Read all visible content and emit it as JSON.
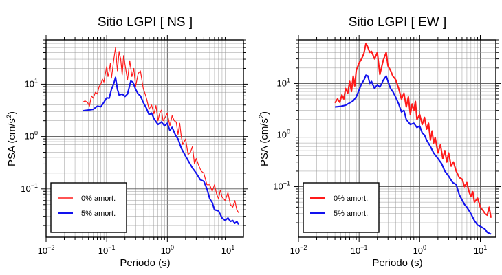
{
  "chart_data": [
    {
      "type": "line",
      "title": "Sitio LGPI [ NS ]",
      "xlabel": "Periodo (s)",
      "ylabel_main": "PSA (cm/s",
      "ylabel_sup": "2",
      "ylabel_close": ")",
      "x_scale": "log",
      "y_scale": "log",
      "xlim": [
        0.01,
        18
      ],
      "ylim": [
        0.012,
        70
      ],
      "grid": true,
      "legend_position": "bottom-left",
      "x_ticks": [
        {
          "base": "10",
          "exp": "−2",
          "value": 0.01
        },
        {
          "base": "10",
          "exp": "−1",
          "value": 0.1
        },
        {
          "base": "10",
          "exp": "0",
          "value": 1
        },
        {
          "base": "10",
          "exp": "1",
          "value": 10
        }
      ],
      "y_ticks": [
        {
          "base": "10",
          "exp": "−1",
          "value": 0.1
        },
        {
          "base": "10",
          "exp": "0",
          "value": 1
        },
        {
          "base": "10",
          "exp": "1",
          "value": 10
        }
      ],
      "series": [
        {
          "name": "0% amort.",
          "color": "#ff1a1a",
          "points": [
            [
              0.04,
              4.5
            ],
            [
              0.044,
              4.8
            ],
            [
              0.048,
              4.5
            ],
            [
              0.052,
              3.8
            ],
            [
              0.056,
              6.0
            ],
            [
              0.06,
              5.4
            ],
            [
              0.065,
              7.0
            ],
            [
              0.07,
              6.5
            ],
            [
              0.075,
              9.0
            ],
            [
              0.08,
              10.0
            ],
            [
              0.085,
              12.5
            ],
            [
              0.09,
              11.0
            ],
            [
              0.095,
              16.0
            ],
            [
              0.1,
              22.0
            ],
            [
              0.105,
              14.0
            ],
            [
              0.11,
              18.0
            ],
            [
              0.115,
              25.0
            ],
            [
              0.12,
              13.0
            ],
            [
              0.13,
              28.0
            ],
            [
              0.14,
              50.0
            ],
            [
              0.15,
              18.0
            ],
            [
              0.16,
              42.0
            ],
            [
              0.17,
              30.0
            ],
            [
              0.18,
              15.0
            ],
            [
              0.19,
              35.0
            ],
            [
              0.2,
              24.0
            ],
            [
              0.22,
              12.0
            ],
            [
              0.24,
              28.0
            ],
            [
              0.26,
              14.0
            ],
            [
              0.28,
              20.0
            ],
            [
              0.3,
              9.0
            ],
            [
              0.33,
              16.0
            ],
            [
              0.36,
              18.0
            ],
            [
              0.4,
              8.5
            ],
            [
              0.45,
              5.5
            ],
            [
              0.5,
              3.3
            ],
            [
              0.55,
              4.0
            ],
            [
              0.6,
              2.7
            ],
            [
              0.65,
              3.9
            ],
            [
              0.7,
              2.0
            ],
            [
              0.75,
              2.8
            ],
            [
              0.8,
              3.2
            ],
            [
              0.85,
              2.0
            ],
            [
              0.9,
              2.2
            ],
            [
              1.0,
              2.8
            ],
            [
              1.1,
              1.6
            ],
            [
              1.2,
              2.5
            ],
            [
              1.3,
              2.0
            ],
            [
              1.4,
              1.9
            ],
            [
              1.5,
              1.1
            ],
            [
              1.6,
              1.8
            ],
            [
              1.7,
              1.0
            ],
            [
              1.8,
              0.7
            ],
            [
              2.0,
              0.9
            ],
            [
              2.2,
              0.45
            ],
            [
              2.4,
              0.5
            ],
            [
              2.6,
              0.65
            ],
            [
              2.8,
              0.3
            ],
            [
              3.0,
              0.38
            ],
            [
              3.3,
              0.28
            ],
            [
              3.6,
              0.22
            ],
            [
              4.0,
              0.2
            ],
            [
              4.5,
              0.12
            ],
            [
              5.0,
              0.12
            ],
            [
              5.5,
              0.09
            ],
            [
              6.0,
              0.12
            ],
            [
              6.5,
              0.08
            ],
            [
              7.0,
              0.065
            ],
            [
              7.5,
              0.095
            ],
            [
              8.0,
              0.07
            ],
            [
              9.0,
              0.06
            ],
            [
              10.0,
              0.085
            ],
            [
              11.0,
              0.05
            ],
            [
              12.0,
              0.045
            ],
            [
              13.0,
              0.06
            ],
            [
              14.0,
              0.04
            ],
            [
              15.0,
              0.035
            ]
          ]
        },
        {
          "name": "5% amort.",
          "color": "#1212ee",
          "points": [
            [
              0.04,
              3.1
            ],
            [
              0.05,
              3.2
            ],
            [
              0.06,
              3.3
            ],
            [
              0.07,
              3.8
            ],
            [
              0.08,
              3.7
            ],
            [
              0.09,
              4.5
            ],
            [
              0.1,
              5.5
            ],
            [
              0.11,
              5.4
            ],
            [
              0.12,
              8.0
            ],
            [
              0.13,
              10.0
            ],
            [
              0.14,
              13.5
            ],
            [
              0.15,
              8.0
            ],
            [
              0.16,
              6.2
            ],
            [
              0.18,
              6.5
            ],
            [
              0.2,
              5.8
            ],
            [
              0.22,
              6.5
            ],
            [
              0.25,
              11.5
            ],
            [
              0.27,
              11.0
            ],
            [
              0.3,
              8.0
            ],
            [
              0.33,
              6.5
            ],
            [
              0.36,
              6.0
            ],
            [
              0.4,
              4.5
            ],
            [
              0.45,
              3.5
            ],
            [
              0.5,
              2.6
            ],
            [
              0.55,
              2.8
            ],
            [
              0.6,
              2.2
            ],
            [
              0.7,
              1.7
            ],
            [
              0.8,
              1.9
            ],
            [
              0.9,
              1.6
            ],
            [
              1.0,
              1.8
            ],
            [
              1.1,
              1.3
            ],
            [
              1.2,
              1.5
            ],
            [
              1.3,
              1.2
            ],
            [
              1.4,
              1.0
            ],
            [
              1.5,
              0.9
            ],
            [
              1.7,
              0.6
            ],
            [
              2.0,
              0.42
            ],
            [
              2.3,
              0.32
            ],
            [
              2.6,
              0.25
            ],
            [
              3.0,
              0.2
            ],
            [
              3.5,
              0.15
            ],
            [
              4.0,
              0.14
            ],
            [
              4.5,
              0.1
            ],
            [
              5.0,
              0.065
            ],
            [
              5.5,
              0.055
            ],
            [
              6.0,
              0.04
            ],
            [
              7.0,
              0.038
            ],
            [
              8.0,
              0.028
            ],
            [
              9.0,
              0.025
            ],
            [
              10.0,
              0.028
            ],
            [
              11.0,
              0.024
            ],
            [
              12.0,
              0.025
            ],
            [
              13.0,
              0.022
            ],
            [
              14.0,
              0.024
            ],
            [
              15.0,
              0.021
            ]
          ]
        }
      ]
    },
    {
      "type": "line",
      "title": "Sitio LGPI [ EW ]",
      "xlabel": "Periodo (s)",
      "ylabel_main": "PSA (cm/s",
      "ylabel_sup": "2",
      "ylabel_close": ")",
      "x_scale": "log",
      "y_scale": "log",
      "xlim": [
        0.01,
        18
      ],
      "ylim": [
        0.0105,
        70
      ],
      "grid": true,
      "legend_position": "bottom-left",
      "x_ticks": [
        {
          "base": "10",
          "exp": "−2",
          "value": 0.01
        },
        {
          "base": "10",
          "exp": "−1",
          "value": 0.1
        },
        {
          "base": "10",
          "exp": "0",
          "value": 1
        },
        {
          "base": "10",
          "exp": "1",
          "value": 10
        }
      ],
      "y_ticks": [
        {
          "base": "10",
          "exp": "−1",
          "value": 0.1
        },
        {
          "base": "10",
          "exp": "0",
          "value": 1
        },
        {
          "base": "10",
          "exp": "1",
          "value": 10
        }
      ],
      "series": [
        {
          "name": "0% amort.",
          "color": "#ff1a1a",
          "points": [
            [
              0.04,
              4.2
            ],
            [
              0.044,
              5.0
            ],
            [
              0.048,
              4.3
            ],
            [
              0.052,
              6.0
            ],
            [
              0.056,
              5.0
            ],
            [
              0.06,
              8.0
            ],
            [
              0.065,
              6.5
            ],
            [
              0.07,
              11.0
            ],
            [
              0.075,
              7.0
            ],
            [
              0.08,
              14.0
            ],
            [
              0.085,
              9.0
            ],
            [
              0.09,
              18.0
            ],
            [
              0.1,
              25.0
            ],
            [
              0.11,
              30.0
            ],
            [
              0.12,
              38.0
            ],
            [
              0.13,
              60.0
            ],
            [
              0.14,
              50.0
            ],
            [
              0.15,
              40.0
            ],
            [
              0.16,
              42.0
            ],
            [
              0.18,
              30.0
            ],
            [
              0.2,
              40.0
            ],
            [
              0.22,
              15.0
            ],
            [
              0.25,
              28.0
            ],
            [
              0.28,
              40.0
            ],
            [
              0.3,
              22.0
            ],
            [
              0.33,
              18.0
            ],
            [
              0.36,
              14.0
            ],
            [
              0.4,
              12.0
            ],
            [
              0.45,
              8.0
            ],
            [
              0.5,
              5.0
            ],
            [
              0.55,
              6.5
            ],
            [
              0.6,
              3.5
            ],
            [
              0.65,
              5.5
            ],
            [
              0.7,
              2.5
            ],
            [
              0.75,
              4.0
            ],
            [
              0.8,
              3.0
            ],
            [
              0.85,
              4.5
            ],
            [
              0.9,
              2.0
            ],
            [
              1.0,
              2.5
            ],
            [
              1.1,
              1.6
            ],
            [
              1.2,
              2.2
            ],
            [
              1.3,
              1.3
            ],
            [
              1.4,
              1.7
            ],
            [
              1.5,
              0.8
            ],
            [
              1.6,
              1.2
            ],
            [
              1.7,
              0.7
            ],
            [
              1.8,
              0.9
            ],
            [
              2.0,
              0.45
            ],
            [
              2.2,
              0.65
            ],
            [
              2.4,
              0.35
            ],
            [
              2.6,
              0.5
            ],
            [
              2.8,
              0.3
            ],
            [
              3.0,
              0.45
            ],
            [
              3.3,
              0.25
            ],
            [
              3.6,
              0.3
            ],
            [
              4.0,
              0.2
            ],
            [
              4.5,
              0.15
            ],
            [
              5.0,
              0.14
            ],
            [
              5.5,
              0.1
            ],
            [
              6.0,
              0.12
            ],
            [
              6.5,
              0.08
            ],
            [
              7.0,
              0.065
            ],
            [
              7.5,
              0.08
            ],
            [
              8.0,
              0.05
            ],
            [
              9.0,
              0.06
            ],
            [
              10.0,
              0.04
            ],
            [
              11.0,
              0.035
            ],
            [
              12.0,
              0.03
            ],
            [
              13.0,
              0.028
            ],
            [
              14.0,
              0.04
            ],
            [
              15.0,
              0.025
            ]
          ]
        },
        {
          "name": "5% amort.",
          "color": "#1212ee",
          "points": [
            [
              0.04,
              3.5
            ],
            [
              0.05,
              3.6
            ],
            [
              0.06,
              3.8
            ],
            [
              0.07,
              4.2
            ],
            [
              0.08,
              4.6
            ],
            [
              0.09,
              5.5
            ],
            [
              0.1,
              7.5
            ],
            [
              0.11,
              10.0
            ],
            [
              0.12,
              11.5
            ],
            [
              0.13,
              14.5
            ],
            [
              0.14,
              14.0
            ],
            [
              0.15,
              10.0
            ],
            [
              0.16,
              11.0
            ],
            [
              0.18,
              8.0
            ],
            [
              0.2,
              9.5
            ],
            [
              0.22,
              8.5
            ],
            [
              0.25,
              11.5
            ],
            [
              0.28,
              14.0
            ],
            [
              0.3,
              11.0
            ],
            [
              0.33,
              8.0
            ],
            [
              0.36,
              7.0
            ],
            [
              0.4,
              5.5
            ],
            [
              0.45,
              4.0
            ],
            [
              0.5,
              2.8
            ],
            [
              0.55,
              3.0
            ],
            [
              0.6,
              2.0
            ],
            [
              0.7,
              1.6
            ],
            [
              0.8,
              1.7
            ],
            [
              0.9,
              1.4
            ],
            [
              1.0,
              1.5
            ],
            [
              1.1,
              1.1
            ],
            [
              1.2,
              1.0
            ],
            [
              1.3,
              0.8
            ],
            [
              1.5,
              0.6
            ],
            [
              1.7,
              0.45
            ],
            [
              2.0,
              0.35
            ],
            [
              2.3,
              0.28
            ],
            [
              2.6,
              0.2
            ],
            [
              3.0,
              0.16
            ],
            [
              3.5,
              0.12
            ],
            [
              4.0,
              0.11
            ],
            [
              4.5,
              0.07
            ],
            [
              5.0,
              0.055
            ],
            [
              5.5,
              0.045
            ],
            [
              6.0,
              0.04
            ],
            [
              7.0,
              0.03
            ],
            [
              8.0,
              0.022
            ],
            [
              9.0,
              0.018
            ],
            [
              10.0,
              0.017
            ],
            [
              11.0,
              0.016
            ],
            [
              12.0,
              0.015
            ],
            [
              13.0,
              0.013
            ],
            [
              14.0,
              0.0125
            ],
            [
              15.0,
              0.012
            ]
          ]
        }
      ]
    }
  ]
}
